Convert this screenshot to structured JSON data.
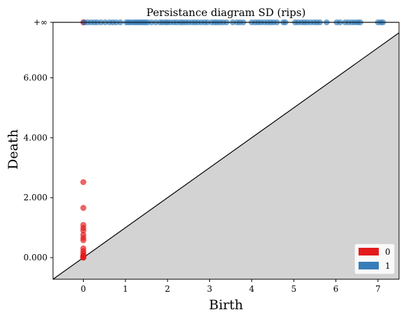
{
  "chart_data": {
    "type": "scatter",
    "title": "Persistance diagram SD (rips)",
    "xlabel": "Birth",
    "ylabel": "Death",
    "xlim": [
      -0.72,
      7.5
    ],
    "ylim": [
      -0.72,
      7.85
    ],
    "x_ticks": [
      0,
      1,
      2,
      3,
      4,
      5,
      6,
      7
    ],
    "x_tick_labels": [
      "0",
      "1",
      "2",
      "3",
      "4",
      "5",
      "6",
      "7"
    ],
    "y_ticks": [
      0,
      2,
      4,
      6
    ],
    "y_tick_labels": [
      "0.000",
      "2.000",
      "4.000",
      "6.000"
    ],
    "infinity_value": 7.85,
    "infinity_label": "+∞",
    "diagonal": true,
    "legend": {
      "position": "bottom-right",
      "entries": [
        "0",
        "1"
      ]
    },
    "series": [
      {
        "name": "0",
        "color": "#e41a1c",
        "points": [
          [
            0,
            0.0
          ],
          [
            0,
            0.01
          ],
          [
            0,
            0.02
          ],
          [
            0,
            0.03
          ],
          [
            0,
            0.05
          ],
          [
            0,
            0.08
          ],
          [
            0,
            0.15
          ],
          [
            0,
            0.22
          ],
          [
            0,
            0.31
          ],
          [
            0,
            0.58
          ],
          [
            0,
            0.66
          ],
          [
            0,
            0.76
          ],
          [
            0,
            0.9
          ],
          [
            0,
            0.99
          ],
          [
            0,
            1.09
          ],
          [
            0,
            1.66
          ],
          [
            0,
            2.52
          ],
          [
            0,
            7.85
          ],
          [
            0.02,
            7.85
          ]
        ]
      },
      {
        "name": "1",
        "color": "#377eb8",
        "points": [
          [
            0.02,
            7.85
          ],
          [
            0.1,
            7.85
          ],
          [
            0.18,
            7.85
          ],
          [
            0.26,
            7.85
          ],
          [
            0.33,
            7.85
          ],
          [
            0.42,
            7.85
          ],
          [
            0.52,
            7.85
          ],
          [
            0.62,
            7.85
          ],
          [
            0.7,
            7.85
          ],
          [
            0.78,
            7.85
          ],
          [
            0.88,
            7.85
          ],
          [
            1.02,
            7.85
          ],
          [
            1.07,
            7.85
          ],
          [
            1.12,
            7.85
          ],
          [
            1.18,
            7.85
          ],
          [
            1.23,
            7.85
          ],
          [
            1.28,
            7.85
          ],
          [
            1.33,
            7.85
          ],
          [
            1.38,
            7.85
          ],
          [
            1.43,
            7.85
          ],
          [
            1.48,
            7.85
          ],
          [
            1.53,
            7.85
          ],
          [
            1.62,
            7.85
          ],
          [
            1.72,
            7.85
          ],
          [
            1.82,
            7.85
          ],
          [
            1.88,
            7.85
          ],
          [
            1.95,
            7.85
          ],
          [
            2.0,
            7.85
          ],
          [
            2.07,
            7.85
          ],
          [
            2.15,
            7.85
          ],
          [
            2.22,
            7.85
          ],
          [
            2.3,
            7.85
          ],
          [
            2.36,
            7.85
          ],
          [
            2.43,
            7.85
          ],
          [
            2.5,
            7.85
          ],
          [
            2.58,
            7.85
          ],
          [
            2.65,
            7.85
          ],
          [
            2.72,
            7.85
          ],
          [
            2.8,
            7.85
          ],
          [
            2.88,
            7.85
          ],
          [
            2.95,
            7.85
          ],
          [
            3.05,
            7.85
          ],
          [
            3.12,
            7.85
          ],
          [
            3.18,
            7.85
          ],
          [
            3.25,
            7.85
          ],
          [
            3.32,
            7.85
          ],
          [
            3.4,
            7.85
          ],
          [
            3.55,
            7.85
          ],
          [
            3.65,
            7.85
          ],
          [
            3.72,
            7.85
          ],
          [
            3.8,
            7.85
          ],
          [
            4.0,
            7.85
          ],
          [
            4.08,
            7.85
          ],
          [
            4.15,
            7.85
          ],
          [
            4.22,
            7.85
          ],
          [
            4.3,
            7.85
          ],
          [
            4.38,
            7.85
          ],
          [
            4.45,
            7.85
          ],
          [
            4.52,
            7.85
          ],
          [
            4.6,
            7.85
          ],
          [
            4.75,
            7.85
          ],
          [
            4.8,
            7.85
          ],
          [
            5.03,
            7.85
          ],
          [
            5.1,
            7.85
          ],
          [
            5.18,
            7.85
          ],
          [
            5.25,
            7.85
          ],
          [
            5.32,
            7.85
          ],
          [
            5.4,
            7.85
          ],
          [
            5.48,
            7.85
          ],
          [
            5.55,
            7.85
          ],
          [
            5.62,
            7.85
          ],
          [
            5.78,
            7.85
          ],
          [
            6.02,
            7.85
          ],
          [
            6.1,
            7.85
          ],
          [
            6.22,
            7.85
          ],
          [
            6.3,
            7.85
          ],
          [
            6.38,
            7.85
          ],
          [
            6.45,
            7.85
          ],
          [
            6.52,
            7.85
          ],
          [
            6.58,
            7.85
          ],
          [
            7.0,
            7.85
          ],
          [
            7.07,
            7.85
          ],
          [
            7.12,
            7.85
          ]
        ]
      }
    ]
  }
}
